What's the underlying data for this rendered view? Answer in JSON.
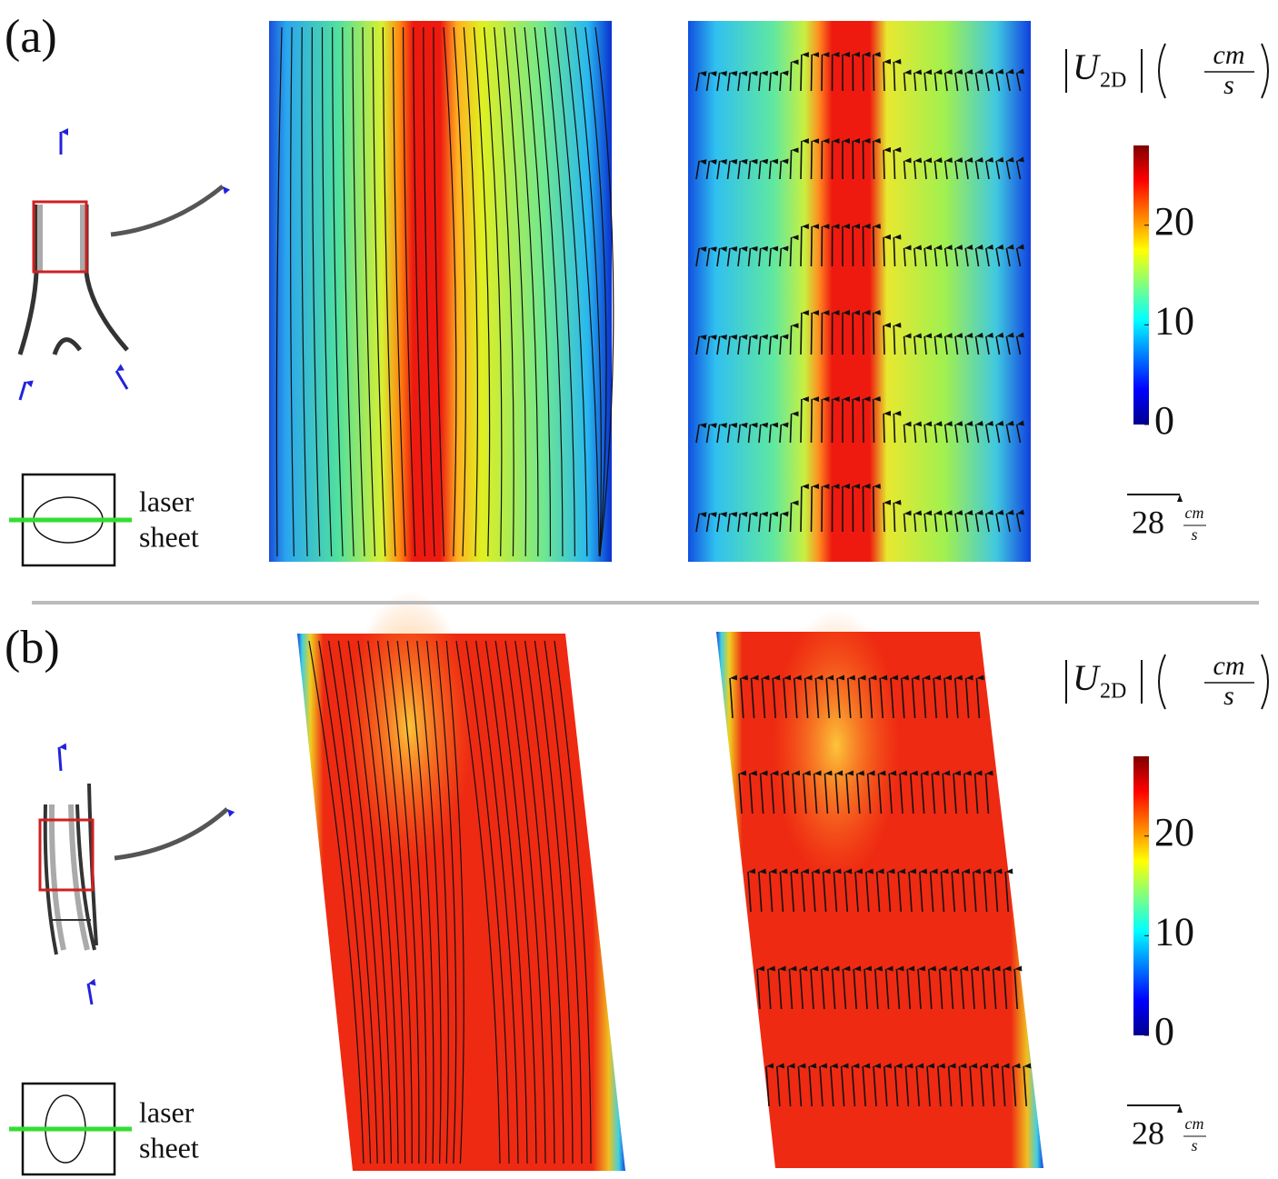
{
  "panels": [
    {
      "label": "(a)",
      "laser_text": [
        "laser",
        "sheet"
      ],
      "colorbar": {
        "symbol": "U",
        "subscript": "2D",
        "unit_num": "cm",
        "unit_den": "s",
        "lim": [
          0,
          28
        ],
        "ticks": [
          0,
          10,
          20
        ]
      },
      "scale": {
        "value": 28,
        "unit_num": "cm",
        "unit_den": "s"
      }
    },
    {
      "label": "(b)",
      "laser_text": [
        "laser",
        "sheet"
      ],
      "colorbar": {
        "symbol": "U",
        "subscript": "2D",
        "unit_num": "cm",
        "unit_den": "s",
        "lim": [
          0,
          28
        ],
        "ticks": [
          0,
          10,
          20
        ]
      },
      "scale": {
        "value": 28,
        "unit_num": "cm",
        "unit_den": "s"
      }
    }
  ]
}
